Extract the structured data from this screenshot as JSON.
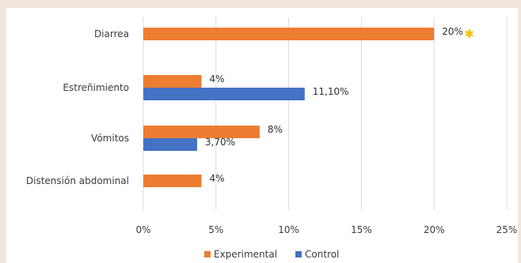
{
  "chart_data": {
    "type": "bar",
    "orientation": "horizontal",
    "categories": [
      "Diarrea",
      "Estreñimiento",
      "Vómitos",
      "Distensión abdominal"
    ],
    "series": [
      {
        "name": "Experimental",
        "color": "#ed7d31",
        "values": [
          20,
          4,
          8,
          4
        ],
        "labels": [
          "20%",
          "4%",
          "8%",
          "4%"
        ]
      },
      {
        "name": "Control",
        "color": "#4472c4",
        "values": [
          null,
          11.1,
          3.7,
          null
        ],
        "labels": [
          "",
          "11,10%",
          "3,70%",
          ""
        ]
      }
    ],
    "xlim": [
      0,
      25
    ],
    "xticks": [
      0,
      5,
      10,
      15,
      20,
      25
    ],
    "xtick_labels": [
      "0%",
      "5%",
      "10%",
      "15%",
      "20%",
      "25%"
    ],
    "annotations": [
      {
        "category": "Diarrea",
        "series": "Experimental",
        "symbol": "✱",
        "color": "#f2c300"
      }
    ],
    "grid": true,
    "legend_position": "bottom"
  }
}
